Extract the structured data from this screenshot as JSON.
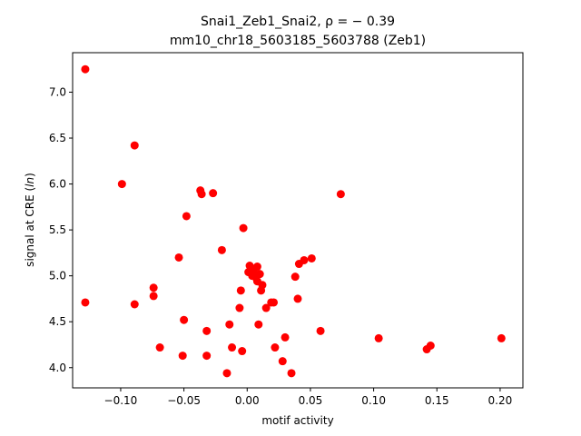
{
  "chart_data": {
    "type": "scatter",
    "title_line1": "Snai1_Zeb1_Snai2, ρ = − 0.39",
    "title_line2": "mm10_chr18_5603185_5603788 (Zeb1)",
    "xlabel": "motif activity",
    "ylabel": "signal at CRE (ln)",
    "xlim": [
      -0.138,
      0.218
    ],
    "ylim": [
      3.78,
      7.43
    ],
    "xticks": [
      -0.1,
      -0.05,
      0.0,
      0.05,
      0.1,
      0.15,
      0.2
    ],
    "xtick_labels": [
      "−0.10",
      "−0.05",
      "0.00",
      "0.05",
      "0.10",
      "0.15",
      "0.20"
    ],
    "yticks": [
      4.0,
      4.5,
      5.0,
      5.5,
      6.0,
      6.5,
      7.0
    ],
    "ytick_labels": [
      "4.0",
      "4.5",
      "5.0",
      "5.5",
      "6.0",
      "6.5",
      "7.0"
    ],
    "marker_color": "#ff0000",
    "grid": false,
    "points": [
      {
        "x": -0.128,
        "y": 7.25
      },
      {
        "x": -0.128,
        "y": 4.71
      },
      {
        "x": -0.099,
        "y": 6.0
      },
      {
        "x": -0.089,
        "y": 6.42
      },
      {
        "x": -0.089,
        "y": 4.69
      },
      {
        "x": -0.074,
        "y": 4.87
      },
      {
        "x": -0.074,
        "y": 4.78
      },
      {
        "x": -0.069,
        "y": 4.22
      },
      {
        "x": -0.054,
        "y": 5.2
      },
      {
        "x": -0.051,
        "y": 4.13
      },
      {
        "x": -0.05,
        "y": 4.52
      },
      {
        "x": -0.048,
        "y": 5.65
      },
      {
        "x": -0.037,
        "y": 5.93
      },
      {
        "x": -0.036,
        "y": 5.89
      },
      {
        "x": -0.032,
        "y": 4.4
      },
      {
        "x": -0.032,
        "y": 4.13
      },
      {
        "x": -0.027,
        "y": 5.9
      },
      {
        "x": -0.02,
        "y": 5.28
      },
      {
        "x": -0.016,
        "y": 3.94
      },
      {
        "x": -0.014,
        "y": 4.47
      },
      {
        "x": -0.012,
        "y": 4.22
      },
      {
        "x": -0.006,
        "y": 4.65
      },
      {
        "x": -0.005,
        "y": 4.84
      },
      {
        "x": -0.004,
        "y": 4.18
      },
      {
        "x": -0.003,
        "y": 5.52
      },
      {
        "x": 0.001,
        "y": 5.04
      },
      {
        "x": 0.002,
        "y": 5.11
      },
      {
        "x": 0.004,
        "y": 5.0
      },
      {
        "x": 0.005,
        "y": 5.06
      },
      {
        "x": 0.006,
        "y": 5.02
      },
      {
        "x": 0.007,
        "y": 4.98
      },
      {
        "x": 0.008,
        "y": 5.1
      },
      {
        "x": 0.008,
        "y": 4.94
      },
      {
        "x": 0.009,
        "y": 4.47
      },
      {
        "x": 0.01,
        "y": 5.02
      },
      {
        "x": 0.011,
        "y": 4.84
      },
      {
        "x": 0.012,
        "y": 4.9
      },
      {
        "x": 0.015,
        "y": 4.65
      },
      {
        "x": 0.019,
        "y": 4.71
      },
      {
        "x": 0.021,
        "y": 4.71
      },
      {
        "x": 0.022,
        "y": 4.22
      },
      {
        "x": 0.028,
        "y": 4.07
      },
      {
        "x": 0.03,
        "y": 4.33
      },
      {
        "x": 0.035,
        "y": 3.94
      },
      {
        "x": 0.038,
        "y": 4.99
      },
      {
        "x": 0.04,
        "y": 4.75
      },
      {
        "x": 0.041,
        "y": 5.13
      },
      {
        "x": 0.045,
        "y": 5.17
      },
      {
        "x": 0.051,
        "y": 5.19
      },
      {
        "x": 0.058,
        "y": 4.4
      },
      {
        "x": 0.074,
        "y": 5.89
      },
      {
        "x": 0.104,
        "y": 4.32
      },
      {
        "x": 0.142,
        "y": 4.2
      },
      {
        "x": 0.145,
        "y": 4.24
      },
      {
        "x": 0.201,
        "y": 4.32
      }
    ]
  }
}
